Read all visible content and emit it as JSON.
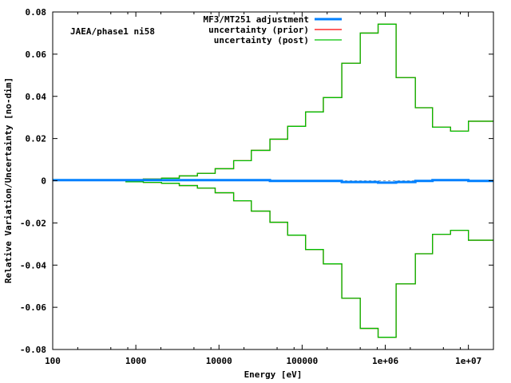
{
  "chart_data": {
    "type": "line",
    "title": "JAEA/phase1 ni58",
    "xlabel": "Energy [eV]",
    "ylabel": "Relative Variation/Uncertainty [no-dim]",
    "xscale": "log",
    "xlim": [
      100,
      20000000
    ],
    "ylim": [
      -0.08,
      0.08
    ],
    "xticks": [
      {
        "v": 100,
        "label": "100"
      },
      {
        "v": 1000,
        "label": "1000"
      },
      {
        "v": 10000,
        "label": "10000"
      },
      {
        "v": 100000,
        "label": "100000"
      },
      {
        "v": 1000000,
        "label": "1e+06"
      },
      {
        "v": 10000000,
        "label": "1e+07"
      }
    ],
    "yticks": [
      {
        "v": 0.08,
        "label": "0.08"
      },
      {
        "v": 0.06,
        "label": "0.06"
      },
      {
        "v": 0.04,
        "label": "0.04"
      },
      {
        "v": 0.02,
        "label": "0.02"
      },
      {
        "v": 0,
        "label": "0"
      },
      {
        "v": -0.02,
        "label": "-0.02"
      },
      {
        "v": -0.04,
        "label": "-0.04"
      },
      {
        "v": -0.06,
        "label": "-0.06"
      },
      {
        "v": -0.08,
        "label": "-0.08"
      }
    ],
    "legend_position": "top-center",
    "bin_edges": [
      750,
      1230,
      2040,
      3330,
      5500,
      9000,
      15000,
      24500,
      41000,
      67000,
      110000,
      180000,
      300000,
      500000,
      820000,
      1350000,
      2300000,
      3700000,
      6100000,
      10000000,
      20000000
    ],
    "series": [
      {
        "name": "MF3/MT251 adjustment",
        "color": "#0080ff",
        "style": "step-thick",
        "edges": [
          100,
          41000,
          300000,
          820000,
          1350000,
          2300000,
          3700000,
          10000000,
          20000000
        ],
        "values": [
          0.0003,
          -0.0001,
          -0.0006,
          -0.0009,
          -0.0006,
          -0.0001,
          0.0003,
          -0.0001
        ]
      },
      {
        "name": "uncertainty (prior)",
        "color": "#ff0000",
        "style": "step-symmetric",
        "values": [
          0.0005,
          0.0008,
          0.0012,
          0.0023,
          0.0035,
          0.0057,
          0.0095,
          0.0144,
          0.0197,
          0.0258,
          0.0326,
          0.0394,
          0.0557,
          0.07,
          0.0742,
          0.0489,
          0.0346,
          0.0254,
          0.0235,
          0.0282
        ]
      },
      {
        "name": "uncertainty (post)",
        "color": "#00c000",
        "style": "step-symmetric",
        "values": [
          0.0005,
          0.0008,
          0.0012,
          0.0023,
          0.0035,
          0.0057,
          0.0095,
          0.0144,
          0.0197,
          0.0258,
          0.0326,
          0.0394,
          0.0557,
          0.07,
          0.0742,
          0.0489,
          0.0346,
          0.0254,
          0.0235,
          0.0282
        ]
      }
    ]
  }
}
